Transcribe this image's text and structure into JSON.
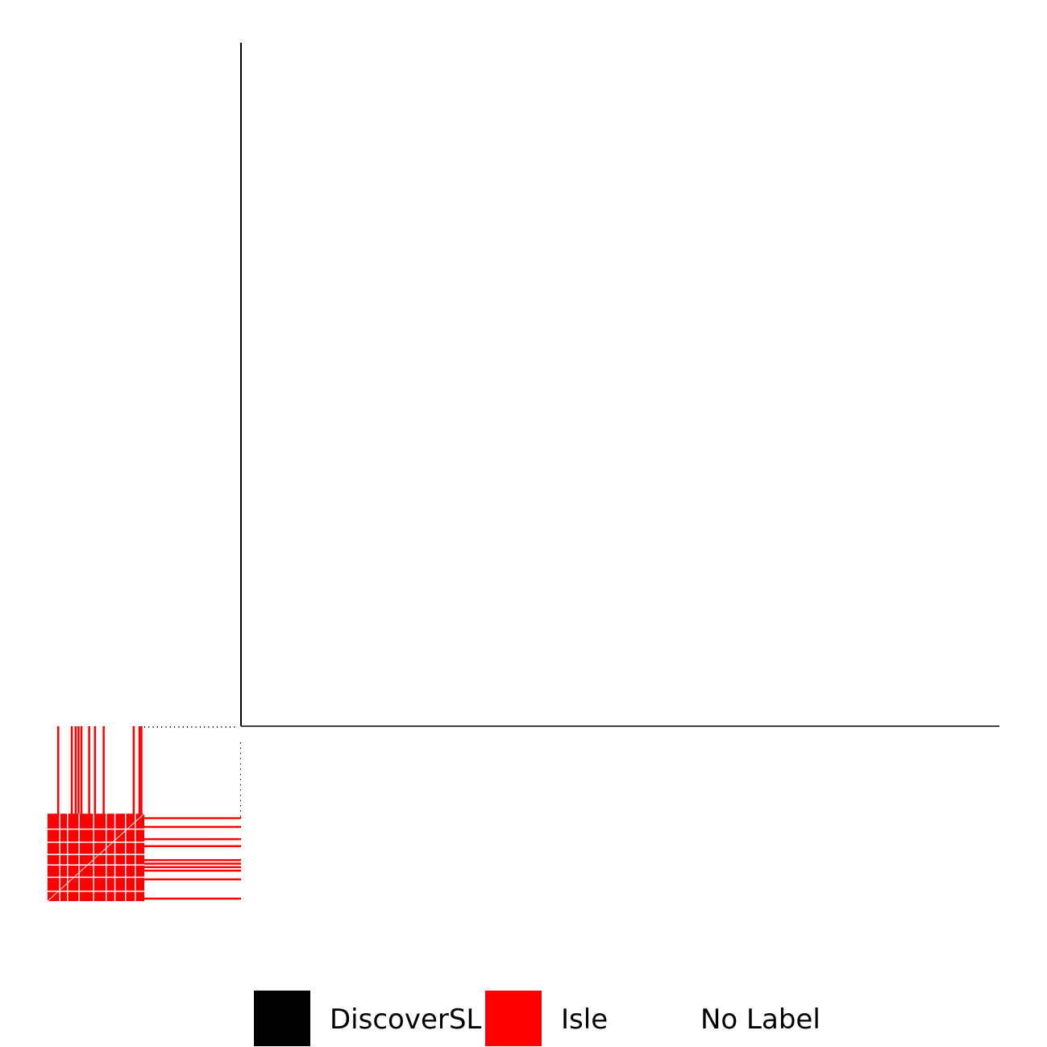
{
  "chart_data": {
    "type": "heatmap",
    "title": "",
    "xlabel": "",
    "ylabel": "",
    "axes": {
      "vertical_axis_line": true,
      "horizontal_axis_line": true,
      "ticks": false,
      "grid": false
    },
    "panels": [
      {
        "name": "",
        "position": "top-right",
        "note": "empty plotting region",
        "cells": []
      },
      {
        "name": "",
        "position": "bottom-left",
        "note": "label matrix",
        "block": {
          "full_red_rows_fraction": [
            0.5,
            1.0
          ],
          "full_red_cols_fraction": [
            0.0,
            0.5
          ],
          "upper_left_red_cols": [
            0.05,
            0.12,
            0.14,
            0.155,
            0.17,
            0.21,
            0.24,
            0.285,
            0.44,
            0.47,
            0.48
          ],
          "right_side_red_rows": [
            0.52,
            0.57,
            0.64,
            0.68,
            0.76,
            0.78,
            0.8,
            0.82,
            0.87,
            0.98
          ],
          "white_gap_rows": [
            0.585,
            0.66,
            0.73,
            0.79,
            0.86,
            0.94
          ],
          "white_gap_cols": [
            0.06,
            0.1,
            0.16,
            0.235,
            0.3,
            0.345,
            0.4,
            0.45
          ]
        }
      }
    ],
    "legend": {
      "placement": "bottom",
      "entries": [
        {
          "label": "DiscoverSL",
          "color": "#000000"
        },
        {
          "label": "Isle",
          "color": "#ff0000"
        },
        {
          "label": "No Label",
          "color": "#ffffff"
        }
      ]
    }
  }
}
